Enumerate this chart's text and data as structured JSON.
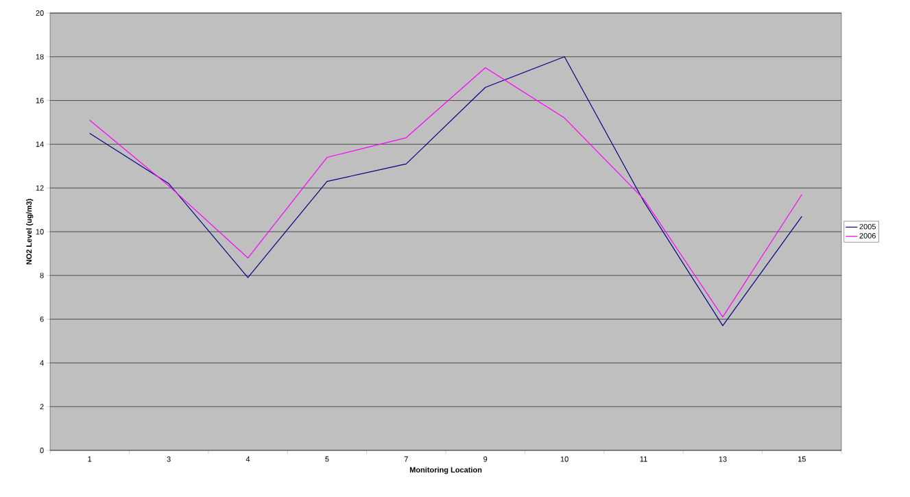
{
  "chart_data": {
    "type": "line",
    "xlabel": "Monitoring Location",
    "ylabel": "NO2 Level (ug/m3)",
    "categories": [
      "1",
      "3",
      "4",
      "5",
      "7",
      "9",
      "10",
      "11",
      "13",
      "15"
    ],
    "series": [
      {
        "name": "2005",
        "color": "#000080",
        "values": [
          14.5,
          12.2,
          7.9,
          12.3,
          13.1,
          16.6,
          18.0,
          11.4,
          5.7,
          10.7
        ]
      },
      {
        "name": "2006",
        "color": "#ff00ff",
        "values": [
          15.1,
          12.1,
          8.8,
          13.4,
          14.3,
          17.5,
          15.2,
          11.5,
          6.1,
          11.7
        ]
      }
    ],
    "ylim": [
      0,
      20
    ],
    "yticks": [
      0,
      2,
      4,
      6,
      8,
      10,
      12,
      14,
      16,
      18,
      20
    ],
    "grid": "y",
    "legend": "right",
    "marker": "none"
  }
}
